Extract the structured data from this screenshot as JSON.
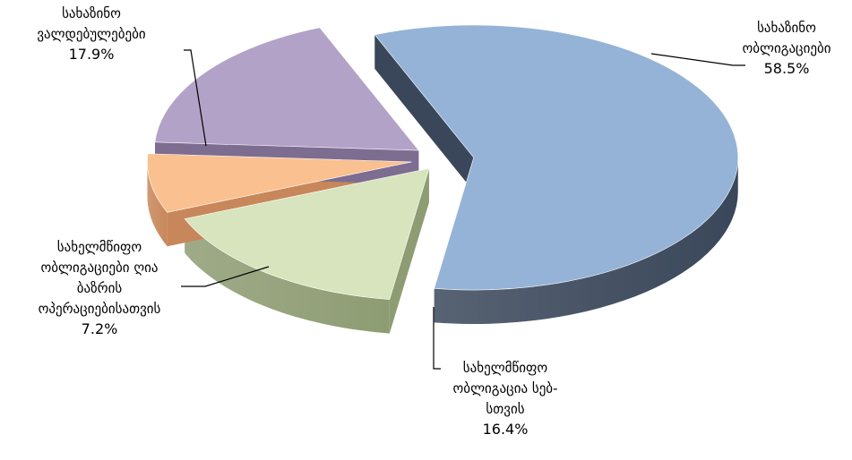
{
  "chart_data": {
    "type": "pie",
    "title": "",
    "exploded": true,
    "three_d": true,
    "slices": [
      {
        "lines": [
          "სახაზინო",
          "ობლიგაციები"
        ],
        "value": 58.5,
        "percent_label": "58.5%",
        "color": "#95B3D7",
        "side_color": "#3A475A"
      },
      {
        "lines": [
          "სახელმწიფო",
          "ობლიგაცია სებ-",
          "სთვის"
        ],
        "value": 16.4,
        "percent_label": "16.4%",
        "color": "#D7E4BD",
        "side_color": "#8E9C73"
      },
      {
        "lines": [
          "სახელმწიფო",
          "ობლიგაციები ღია",
          "ბაზრის",
          "ოპერაციებისათვის"
        ],
        "value": 7.2,
        "percent_label": "7.2%",
        "color": "#FAC090",
        "side_color": "#C8875A"
      },
      {
        "lines": [
          "სახაზინო",
          "ვალდებულებები"
        ],
        "value": 17.9,
        "percent_label": "17.9%",
        "color": "#B3A2C7",
        "side_color": "#7D6D91"
      }
    ]
  }
}
